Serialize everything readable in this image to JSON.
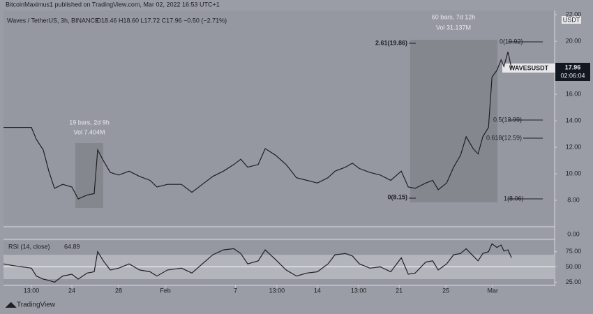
{
  "page": {
    "publisher": "BitcoinMaximus1 published on TradingView.com, Mar 02, 2022 16:53 UTC+1",
    "symbol": "Waves / TetherUS, 3h, BINANCE",
    "ohlc": "O18.46 H18.60 L17.72 C17.96 −0.50 (−2.71%)",
    "currency": "USDT",
    "ticker": "WAVESUSDT",
    "last_price": "17.96",
    "countdown": "02:06:04",
    "lower_pane_label": "0.00",
    "footer": "TradingView",
    "box1": [
      "19 bars, 2d 9h",
      "Vol 7.404M"
    ],
    "box2": [
      "60 bars, 7d 12h",
      "Vol 31.137M"
    ],
    "fib_right": [
      "0(19.92)",
      "0.5(13.99)",
      "0.618(12.59)",
      "1(8.06)"
    ],
    "fib_left": [
      "2.61(19.86)",
      "0(8.15)"
    ]
  },
  "chart_data": [
    {
      "type": "line",
      "title": "WAVESUSDT",
      "x": [
        18.15,
        19.04,
        20.54,
        20.96,
        21.55,
        22.03,
        22.51,
        23.22,
        24,
        24.54,
        25.31,
        25.91,
        26.21,
        26.69,
        27.28,
        28,
        28.9,
        29.79,
        30.69,
        31.28,
        32.18,
        33.37,
        34.27,
        35.16,
        36.06,
        36.96,
        37.85,
        38.45,
        39.04,
        39.94,
        40.54,
        41.43,
        42.33,
        43.22,
        44.12,
        45.01,
        45.91,
        46.51,
        47.4,
        48,
        48.6,
        49.49,
        50.39,
        51.28,
        52.18,
        52.78,
        53.37,
        54.27,
        54.87,
        55.34,
        56.06,
        56.66,
        57.25,
        57.73,
        58.33,
        58.75,
        59.16,
        59.64,
        59.94,
        60.36,
        60.72,
        60.96,
        61.31,
        61.61
      ],
      "series": [
        {
          "name": "WAVESUSDT",
          "color": "#1e1f24",
          "values": [
            13.5,
            13.5,
            13.5,
            12.6,
            11.8,
            10.2,
            8.9,
            9.2,
            9.0,
            8.1,
            8.4,
            8.5,
            11.8,
            11.0,
            10.1,
            9.9,
            10.2,
            9.8,
            9.5,
            9.0,
            9.2,
            9.2,
            8.6,
            9.2,
            9.8,
            10.2,
            10.7,
            11.1,
            10.5,
            10.7,
            11.9,
            11.4,
            10.7,
            9.7,
            9.5,
            9.3,
            9.7,
            10.2,
            10.5,
            10.8,
            10.4,
            10.1,
            9.9,
            9.5,
            10.2,
            9.0,
            8.9,
            9.3,
            9.5,
            8.8,
            9.3,
            10.5,
            11.4,
            12.8,
            11.9,
            11.5,
            12.8,
            13.5,
            17.3,
            17.8,
            18.6,
            18.1,
            19.2,
            17.96
          ]
        }
      ],
      "xlim": [
        18.15,
        65.3
      ],
      "xticks": [
        {
          "value": 20.54,
          "label": "13:00"
        },
        {
          "value": 24,
          "label": "24"
        },
        {
          "value": 28,
          "label": "28"
        },
        {
          "value": 32,
          "label": "Feb"
        },
        {
          "value": 38,
          "label": "7"
        },
        {
          "value": 41.54,
          "label": "13:00"
        },
        {
          "value": 45,
          "label": "14"
        },
        {
          "value": 48.54,
          "label": "13:00"
        },
        {
          "value": 52,
          "label": "21"
        },
        {
          "value": 56,
          "label": "25"
        },
        {
          "value": 60,
          "label": "Mar"
        }
      ],
      "ylim": [
        6.16,
        22.32
      ],
      "yticks": [
        {
          "value": 22,
          "label": "22.00"
        },
        {
          "value": 20,
          "label": "20.00"
        },
        {
          "value": 16,
          "label": "16.00"
        },
        {
          "value": 14,
          "label": "14.00"
        },
        {
          "value": 12,
          "label": "12.00"
        },
        {
          "value": 10,
          "label": "10.00"
        },
        {
          "value": 8,
          "label": "8.00"
        }
      ]
    },
    {
      "type": "line",
      "title": "RSI (14, close)",
      "last_value": "64.89",
      "x": [
        18.15,
        19.04,
        20.54,
        20.96,
        21.55,
        22.03,
        22.51,
        23.22,
        24,
        24.54,
        25.31,
        25.91,
        26.21,
        26.69,
        27.28,
        28,
        28.9,
        29.79,
        30.69,
        31.28,
        32.18,
        33.37,
        34.27,
        35.16,
        36.06,
        36.96,
        37.85,
        38.45,
        39.04,
        39.94,
        40.54,
        41.43,
        42.33,
        43.22,
        44.12,
        45.01,
        45.91,
        46.51,
        47.4,
        48,
        48.6,
        49.49,
        50.39,
        51.28,
        52.18,
        52.78,
        53.37,
        54.27,
        54.87,
        55.34,
        56.06,
        56.66,
        57.25,
        57.73,
        58.33,
        58.75,
        59.16,
        59.64,
        59.94,
        60.36,
        60.72,
        60.96,
        61.31,
        61.61
      ],
      "series": [
        {
          "name": "RSI",
          "color": "#1e1f24",
          "values": [
            55,
            52,
            48,
            35,
            30,
            28,
            25,
            35,
            38,
            30,
            40,
            42,
            75,
            60,
            45,
            48,
            55,
            45,
            42,
            35,
            45,
            48,
            40,
            55,
            70,
            78,
            80,
            72,
            55,
            60,
            78,
            62,
            45,
            35,
            40,
            42,
            55,
            70,
            72,
            68,
            55,
            48,
            50,
            42,
            65,
            38,
            40,
            58,
            60,
            45,
            55,
            70,
            72,
            80,
            68,
            60,
            72,
            75,
            88,
            82,
            86,
            76,
            78,
            64.89
          ]
        }
      ],
      "xlim": [
        18.15,
        65.3
      ],
      "ylim": [
        22,
        93
      ],
      "band": [
        30,
        70
      ],
      "yticks": [
        {
          "value": 75,
          "label": "75.00"
        },
        {
          "value": 50,
          "label": "50.00"
        },
        {
          "value": 25,
          "label": "25.00"
        }
      ]
    }
  ]
}
